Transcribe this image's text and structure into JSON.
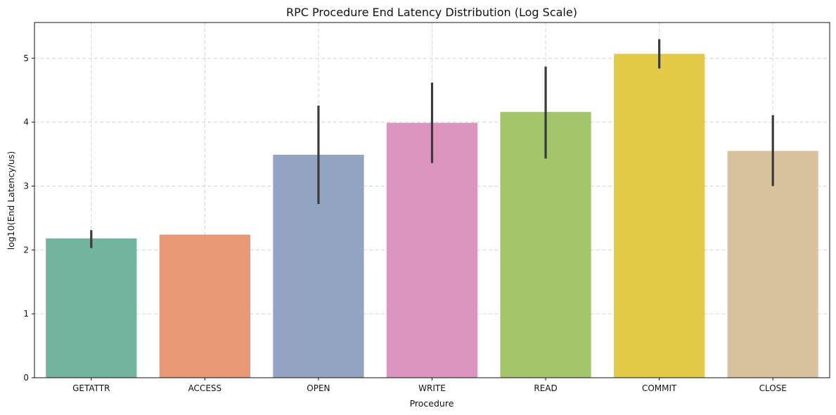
{
  "chart_data": {
    "type": "bar",
    "title": "RPC Procedure End Latency Distribution (Log Scale)",
    "xlabel": "Procedure",
    "ylabel": "log10(End Latency/us)",
    "categories": [
      "GETATTR",
      "ACCESS",
      "OPEN",
      "WRITE",
      "READ",
      "COMMIT",
      "CLOSE"
    ],
    "values": [
      2.18,
      2.24,
      3.49,
      3.99,
      4.16,
      5.07,
      3.55
    ],
    "errors": [
      [
        2.03,
        2.31
      ],
      null,
      [
        2.72,
        4.26
      ],
      [
        3.36,
        4.62
      ],
      [
        3.43,
        4.87
      ],
      [
        4.84,
        5.3
      ],
      [
        3.0,
        4.11
      ]
    ],
    "colors": [
      "#72b59f",
      "#e99876",
      "#93a4c2",
      "#da95bf",
      "#a3c66a",
      "#e3c948",
      "#d9c29e"
    ],
    "yticks": [
      0,
      1,
      2,
      3,
      4,
      5
    ],
    "ylim": [
      0,
      5.56
    ],
    "grid": true
  }
}
